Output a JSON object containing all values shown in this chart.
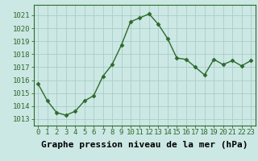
{
  "x": [
    0,
    1,
    2,
    3,
    4,
    5,
    6,
    7,
    8,
    9,
    10,
    11,
    12,
    13,
    14,
    15,
    16,
    17,
    18,
    19,
    20,
    21,
    22,
    23
  ],
  "y": [
    1015.7,
    1014.4,
    1013.5,
    1013.3,
    1013.6,
    1014.4,
    1014.8,
    1016.3,
    1017.2,
    1018.7,
    1020.5,
    1020.8,
    1021.1,
    1020.3,
    1019.2,
    1017.7,
    1017.6,
    1017.0,
    1016.4,
    1017.6,
    1017.2,
    1017.5,
    1017.1,
    1017.5
  ],
  "line_color": "#2d6a2d",
  "marker": "D",
  "marker_size": 2.5,
  "bg_color": "#cce8e4",
  "grid_color": "#aaccc8",
  "ylabel_ticks": [
    1013,
    1014,
    1015,
    1016,
    1017,
    1018,
    1019,
    1020,
    1021
  ],
  "ylim": [
    1012.5,
    1021.8
  ],
  "xlim": [
    -0.5,
    23.5
  ],
  "xlabel": "Graphe pression niveau de la mer (hPa)",
  "xlabel_fontsize": 8,
  "tick_fontsize": 6.5,
  "axis_color": "#2d6a2d",
  "font_family": "monospace"
}
